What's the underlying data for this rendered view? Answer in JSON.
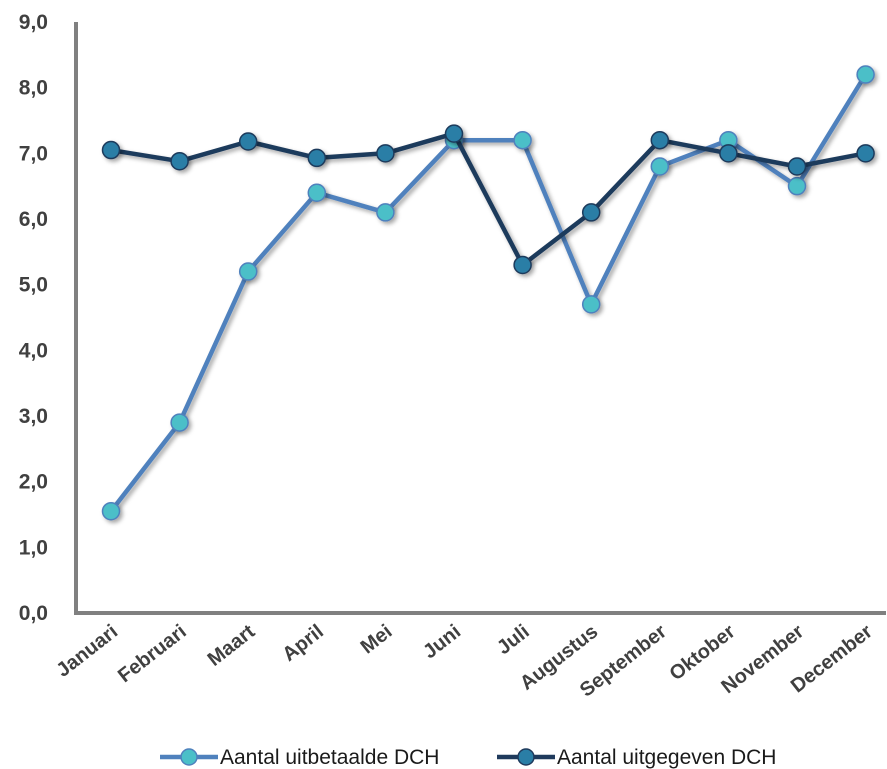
{
  "chart_data": {
    "type": "line",
    "categories": [
      "Januari",
      "Februari",
      "Maart",
      "April",
      "Mei",
      "Juni",
      "Juli",
      "Augustus",
      "September",
      "Oktober",
      "November",
      "December"
    ],
    "series": [
      {
        "name": "Aantal uitbetaalde DCH",
        "values": [
          1.55,
          2.9,
          5.2,
          6.4,
          6.1,
          7.2,
          7.2,
          4.7,
          6.8,
          7.2,
          6.5,
          8.2
        ],
        "line_color": "#4f81bd",
        "marker_color": "#4bbfc8"
      },
      {
        "name": "Aantal uitgegeven DCH",
        "values": [
          7.05,
          6.88,
          7.18,
          6.93,
          7.0,
          7.3,
          5.3,
          6.1,
          7.2,
          7.0,
          6.8,
          7.0
        ],
        "line_color": "#1f3a5c",
        "marker_color": "#2a7ea6"
      }
    ],
    "yticks": [
      "0,0",
      "1,0",
      "2,0",
      "3,0",
      "4,0",
      "5,0",
      "6,0",
      "7,0",
      "8,0",
      "9,0"
    ],
    "ylim": [
      0,
      9
    ],
    "title": "",
    "xlabel": "",
    "ylabel": "",
    "grid": false,
    "legend": "bottom",
    "axis_color": "#808080"
  }
}
